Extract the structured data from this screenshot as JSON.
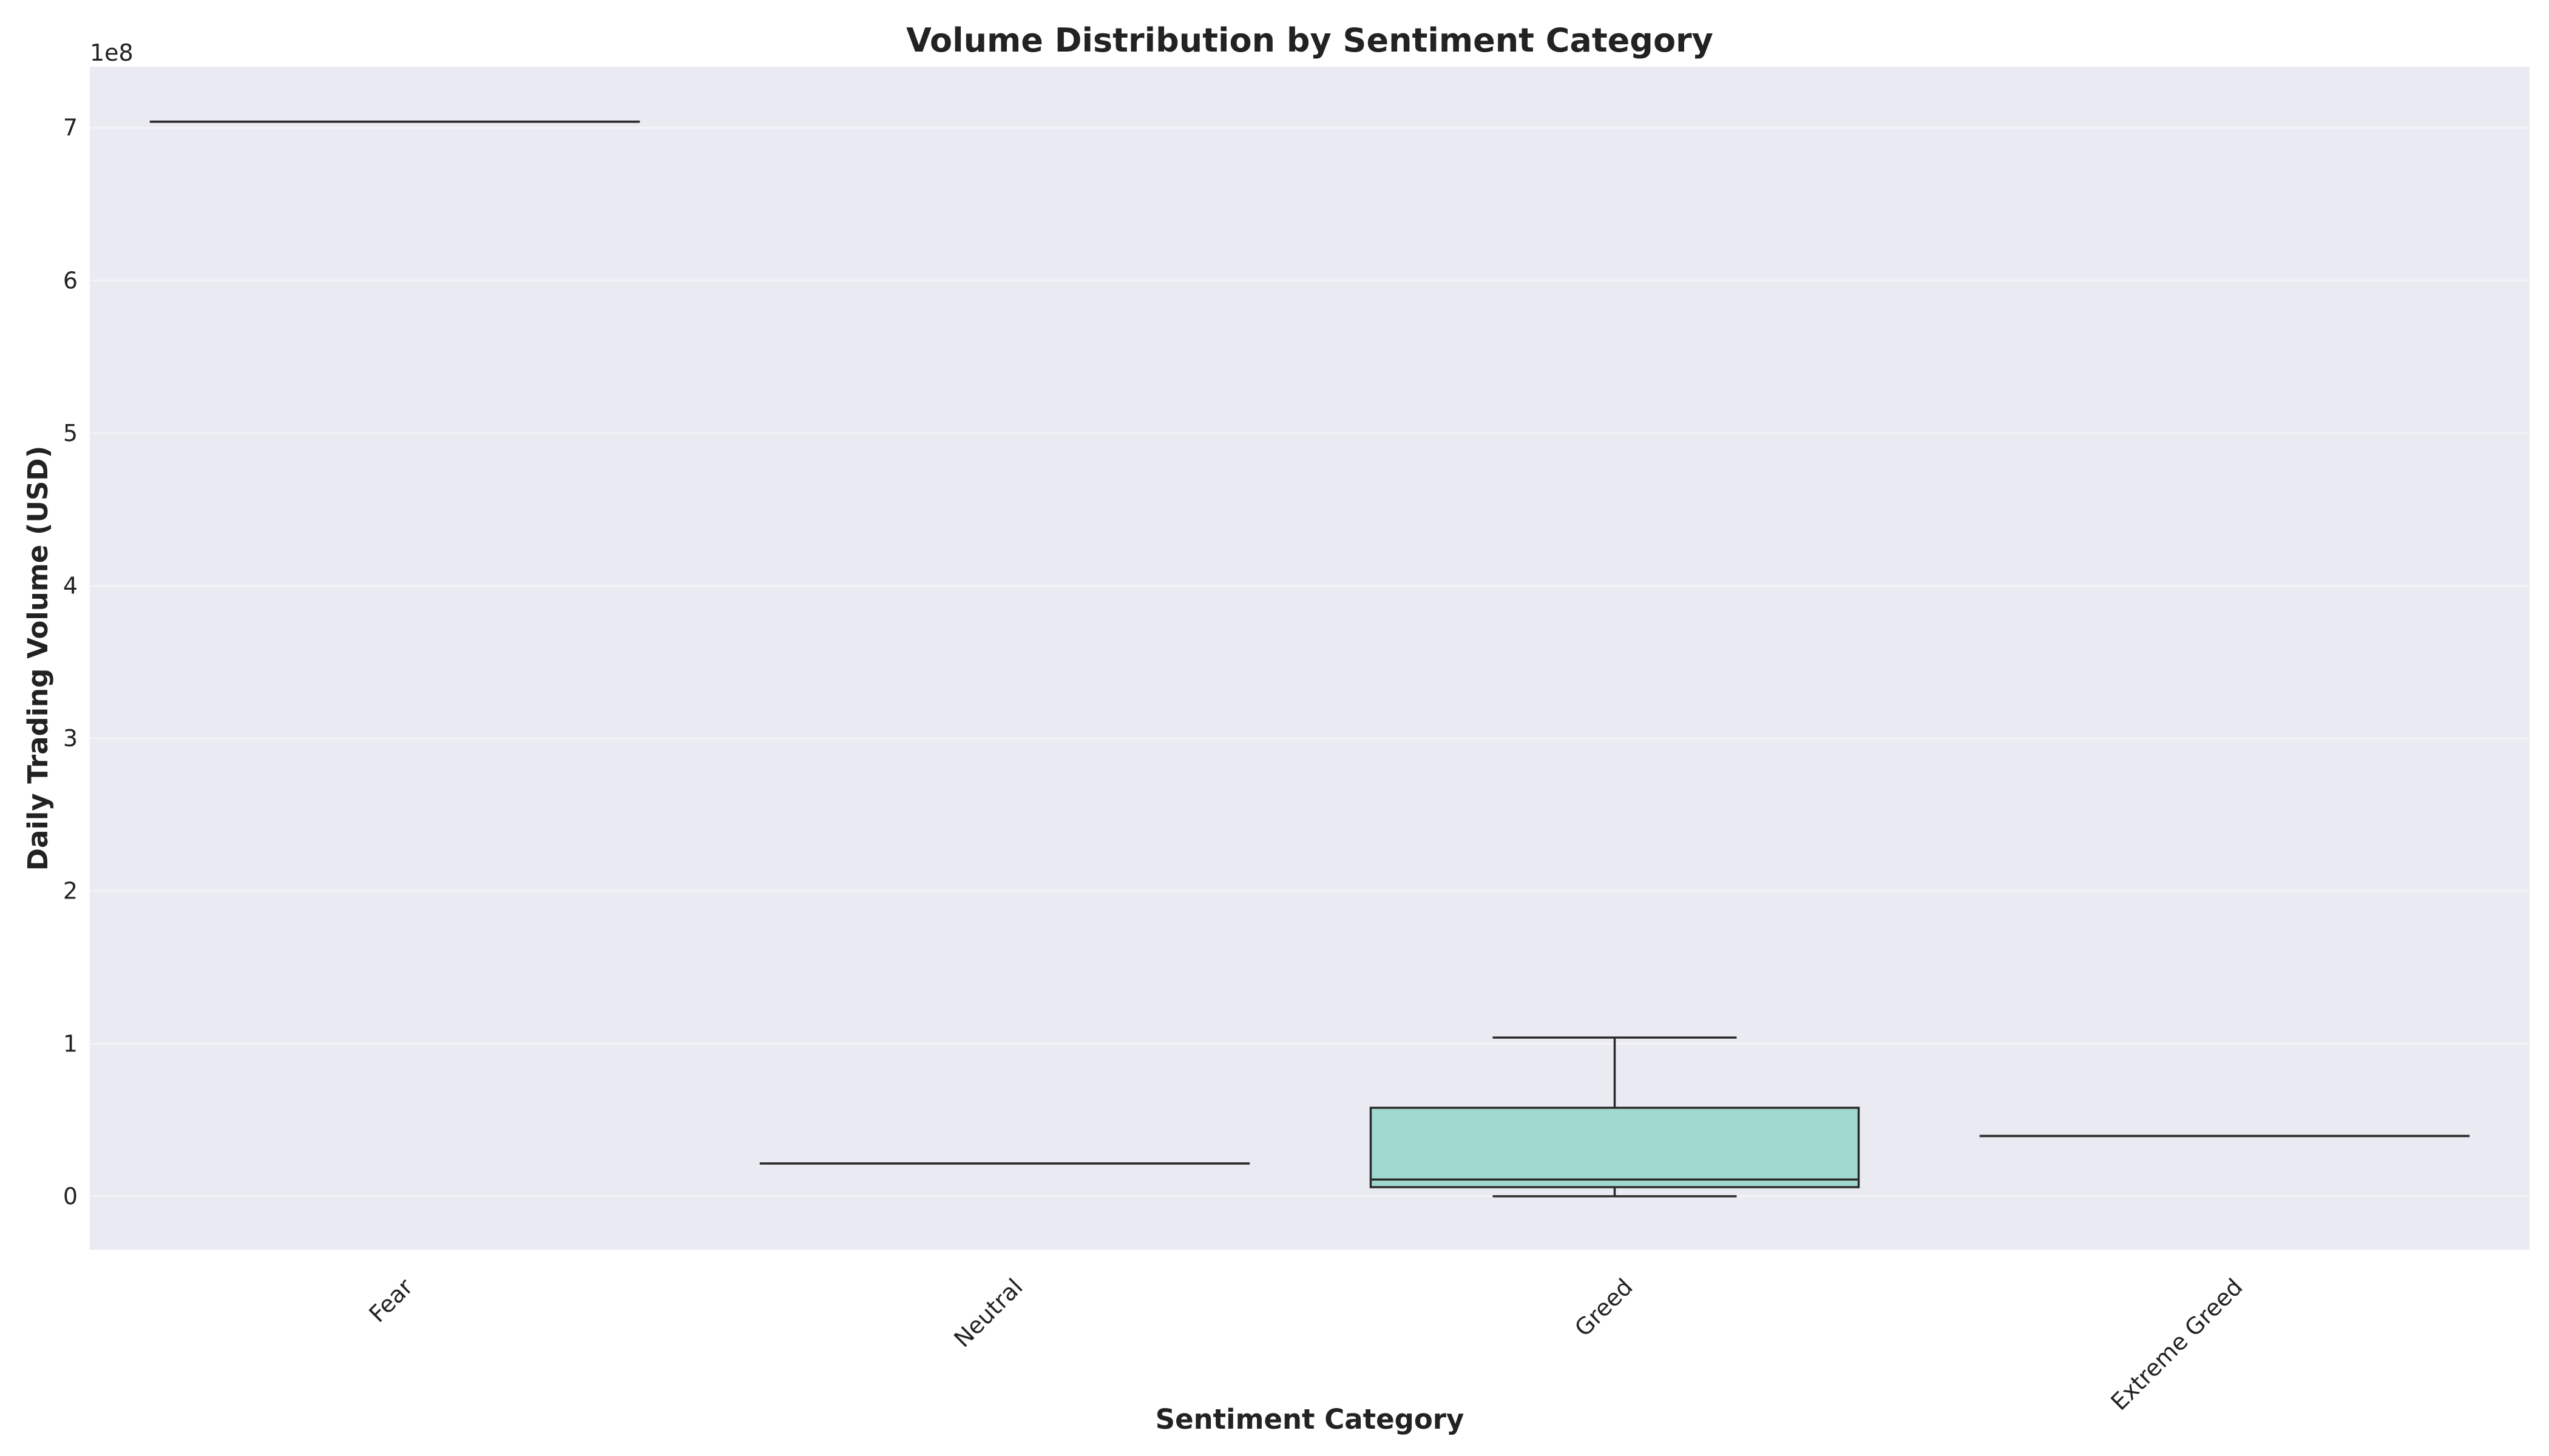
{
  "chart_data": {
    "type": "box",
    "title": "Volume Distribution by Sentiment Category",
    "xlabel": "Sentiment Category",
    "ylabel": "Daily Trading Volume (USD)",
    "y_offset_label": "1e8",
    "ylim": [
      -35000000,
      740000000
    ],
    "yticks": [
      0,
      100000000,
      200000000,
      300000000,
      400000000,
      500000000,
      600000000,
      700000000
    ],
    "ytick_labels": [
      "0",
      "1",
      "2",
      "3",
      "4",
      "5",
      "6",
      "7"
    ],
    "grid": true,
    "categories": [
      "Fear",
      "Neutral",
      "Greed",
      "Extreme Greed"
    ],
    "boxes": [
      {
        "category": "Fear",
        "min": 704000000,
        "q1": 704000000,
        "median": 704000000,
        "q3": 704000000,
        "max": 704000000
      },
      {
        "category": "Neutral",
        "min": 21500000,
        "q1": 21500000,
        "median": 21500000,
        "q3": 21500000,
        "max": 21500000
      },
      {
        "category": "Greed",
        "min": 0,
        "q1": 6000000,
        "median": 11000000,
        "q3": 58000000,
        "max": 104000000
      },
      {
        "category": "Extreme Greed",
        "min": 39500000,
        "q1": 39500000,
        "median": 39500000,
        "q3": 39500000,
        "max": 39500000
      }
    ],
    "colors": {
      "plot_background": "#eaeaf2",
      "grid": "#f2f2f7",
      "box_fill": "#a0d8cf",
      "line": "#2b2b2b"
    }
  }
}
